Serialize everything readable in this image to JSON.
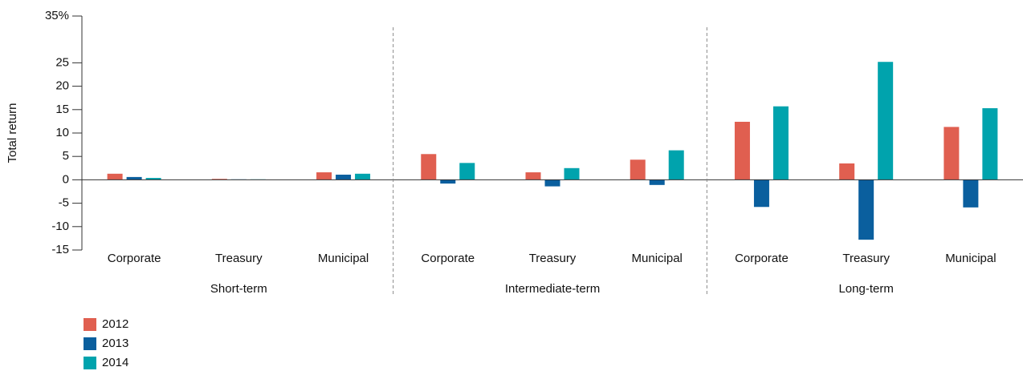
{
  "chart_data": {
    "type": "bar",
    "y_label": "Total return",
    "categories": [
      "Corporate",
      "Treasury",
      "Municipal",
      "Corporate",
      "Treasury",
      "Municipal",
      "Corporate",
      "Treasury",
      "Municipal"
    ],
    "groups": [
      "Short-term",
      "Intermediate-term",
      "Long-term"
    ],
    "series": [
      {
        "name": "2012",
        "color": "#e05f50",
        "values": [
          1.3,
          0.2,
          1.6,
          5.5,
          1.6,
          4.3,
          12.4,
          3.5,
          11.3
        ]
      },
      {
        "name": "2013",
        "color": "#0a5f9e",
        "values": [
          0.6,
          0.1,
          1.1,
          -0.8,
          -1.4,
          -1.1,
          -5.8,
          -12.8,
          -5.9
        ]
      },
      {
        "name": "2014",
        "color": "#00a3ad",
        "values": [
          0.4,
          0.1,
          1.3,
          3.6,
          2.5,
          6.3,
          15.7,
          25.2,
          15.3
        ]
      }
    ],
    "ylim": [
      -15,
      35
    ],
    "yticks": [
      -15,
      -10,
      -5,
      0,
      5,
      10,
      15,
      20,
      25,
      {
        "value": 35,
        "label": "35%"
      }
    ],
    "legend": "bottom-left"
  }
}
